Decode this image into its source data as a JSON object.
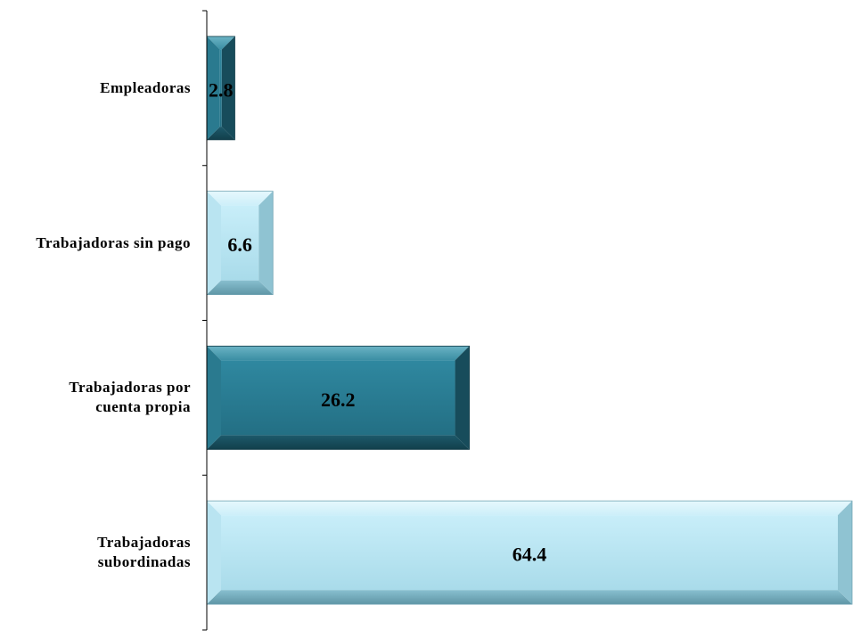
{
  "chart_data": {
    "type": "bar",
    "orientation": "horizontal",
    "categories": [
      "Empleadoras",
      "Trabajadoras sin pago",
      "Trabajadoras por\ncuenta propia",
      "Trabajadoras\nsubordinadas"
    ],
    "values": [
      2.8,
      6.6,
      26.2,
      64.4
    ],
    "value_labels": [
      "2.8",
      "6.6",
      "26.2",
      "64.4"
    ],
    "bar_styles": [
      "dark",
      "light",
      "dark",
      "light"
    ],
    "colors": {
      "dark": "#2b7f93",
      "dark_deep": "#1a5363",
      "light": "#bfe8f5",
      "light_deep": "#7fb5c5"
    },
    "xlim": [
      0,
      64.4
    ],
    "grid": false,
    "legend": "none"
  }
}
